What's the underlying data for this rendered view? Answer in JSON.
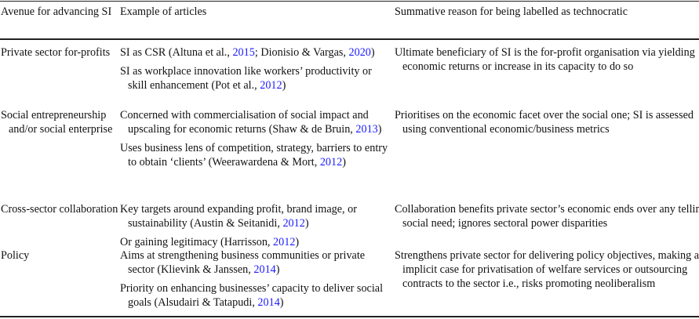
{
  "headers": [
    "Avenue for advancing SI",
    "Example of articles",
    "Summative reason for being labelled as technocratic"
  ],
  "link_color": "#1a1aff",
  "rows": [
    {
      "avenue": "Private sector for-profits",
      "examples": [
        [
          {
            "t": "SI as CSR (Altuna et al., "
          },
          {
            "t": "2015",
            "cite": true
          },
          {
            "t": "; Dionisio & Vargas, "
          },
          {
            "t": "2020",
            "cite": true
          },
          {
            "t": ")"
          }
        ],
        [
          {
            "t": "SI as workplace innovation like workers’ productivity or skill enhancement (Pot et al., "
          },
          {
            "t": "2012",
            "cite": true
          },
          {
            "t": ")"
          }
        ]
      ],
      "reason": "Ultimate beneficiary of SI is the for-profit organisation via yielding economic returns or increase in its capacity to do so"
    },
    {
      "avenue": "Social entrepreneurship and/or social enterprise",
      "examples": [
        [
          {
            "t": "Concerned with commercialisation of social impact and upscaling for economic returns (Shaw & de Bruin, "
          },
          {
            "t": "2013",
            "cite": true
          },
          {
            "t": ")"
          }
        ],
        [
          {
            "t": "Uses business lens of competition, strategy, barriers to entry to obtain ‘clients’ (Weerawardena & Mort, "
          },
          {
            "t": "2012",
            "cite": true
          },
          {
            "t": ")"
          }
        ]
      ],
      "reason": "Prioritises on the economic facet over the social one; SI is assessed using conventional economic/business metrics"
    },
    {
      "avenue": "Cross-sector collaboration",
      "examples": [
        [
          {
            "t": "Key targets around expanding profit, brand image, or sustainability (Austin & Seitanidi, "
          },
          {
            "t": "2012",
            "cite": true
          },
          {
            "t": ")"
          }
        ],
        [
          {
            "t": "Or gaining legitimacy (Harrisson, "
          },
          {
            "t": "2012",
            "cite": true
          },
          {
            "t": ")"
          }
        ]
      ],
      "reason": "Collaboration benefits private sector’s economic ends over any telling social need; ignores sectoral power disparities"
    },
    {
      "avenue": "Policy",
      "examples": [
        [
          {
            "t": "Aims at strengthening business communities or private sector (Klievink & Janssen, "
          },
          {
            "t": "2014",
            "cite": true
          },
          {
            "t": ")"
          }
        ],
        [
          {
            "t": "Priority on enhancing businesses’ capacity to deliver social goals (Alsudairi & Tatapudi, "
          },
          {
            "t": "2014",
            "cite": true
          },
          {
            "t": ")"
          }
        ]
      ],
      "reason": "Strengthens private sector for delivering policy objectives, making an implicit case for privatisation of welfare services or outsourcing contracts to the sector i.e., risks promoting neoliberalism"
    }
  ]
}
